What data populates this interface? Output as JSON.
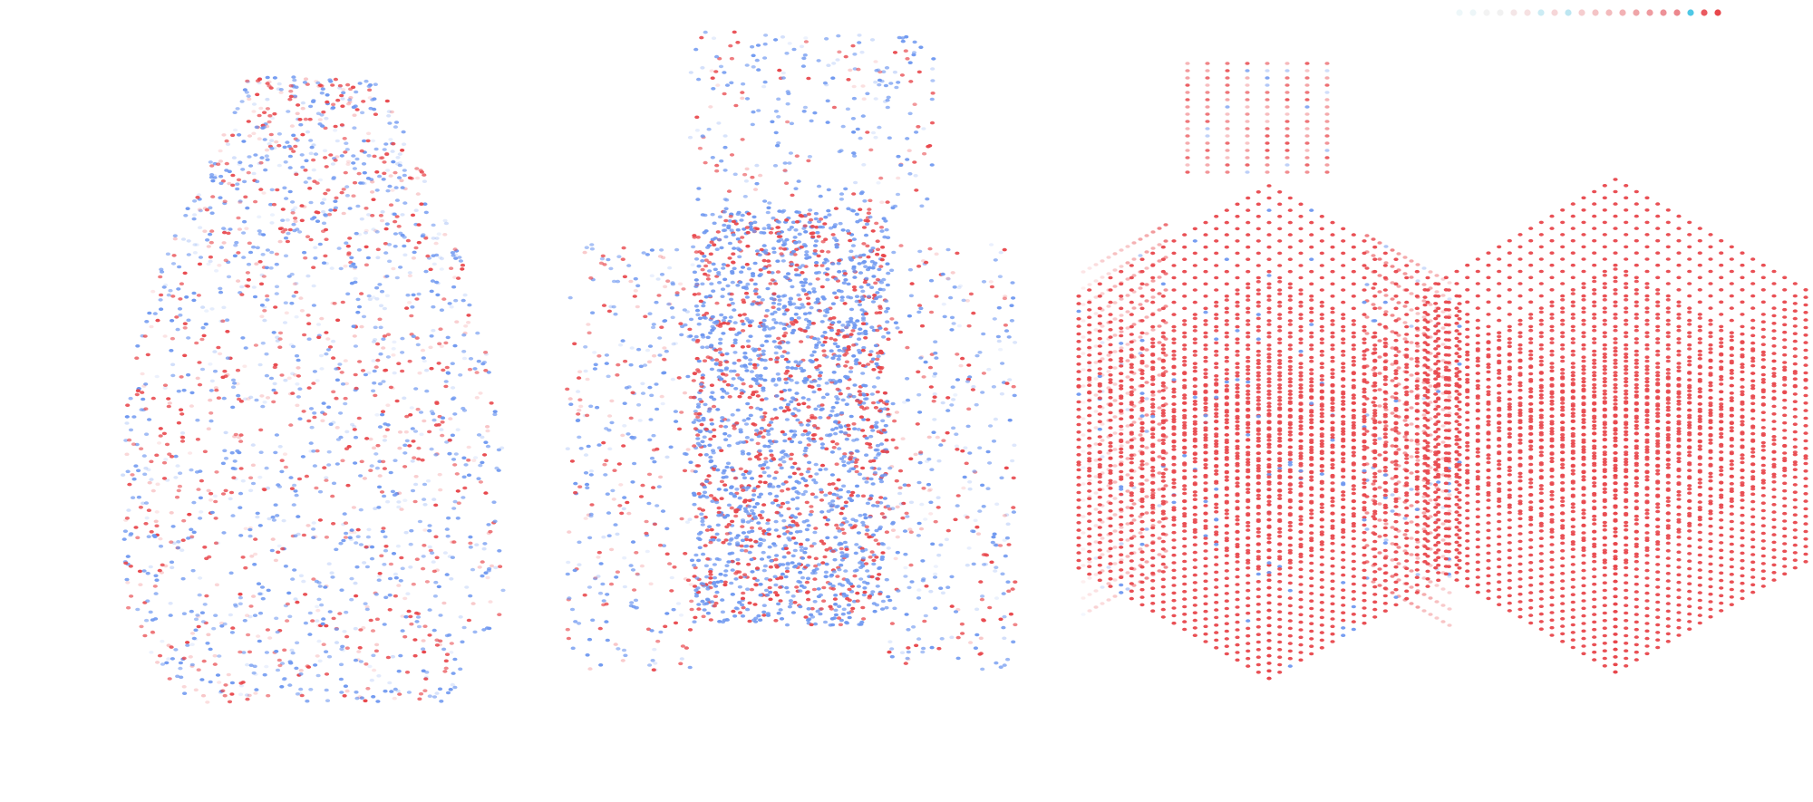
{
  "figure": {
    "panels": [
      {
        "id": "panel-1",
        "label": "",
        "pattern": "scattered-random"
      },
      {
        "id": "panel-2",
        "label": "",
        "pattern": "dense-core-with-scatter"
      },
      {
        "id": "panel-3",
        "label": "",
        "pattern": "solid-block-with-rays"
      },
      {
        "id": "panel-4",
        "label": "",
        "pattern": "solid-block"
      }
    ],
    "colors": {
      "positive": "#e8474c",
      "negative": "#6f98f0",
      "legend_blue": "#4fc8e6",
      "background": "#ffffff"
    },
    "legend": {
      "placement": "top-right",
      "dot_colors": [
        "#eef7f9",
        "#edf6f8",
        "#f3f3f3",
        "#f1f1f1",
        "#f4e6e7",
        "#f6e1e2",
        "#ccecf4",
        "#f6d6d8",
        "#bde6f1",
        "#f5cdcf",
        "#f4c4c6",
        "#f3bbbd",
        "#f2b1b4",
        "#efa5a8",
        "#ef9ba0",
        "#ed9197",
        "#ec878d",
        "#4fc8e6",
        "#ea5a60",
        "#e8474c"
      ]
    }
  }
}
